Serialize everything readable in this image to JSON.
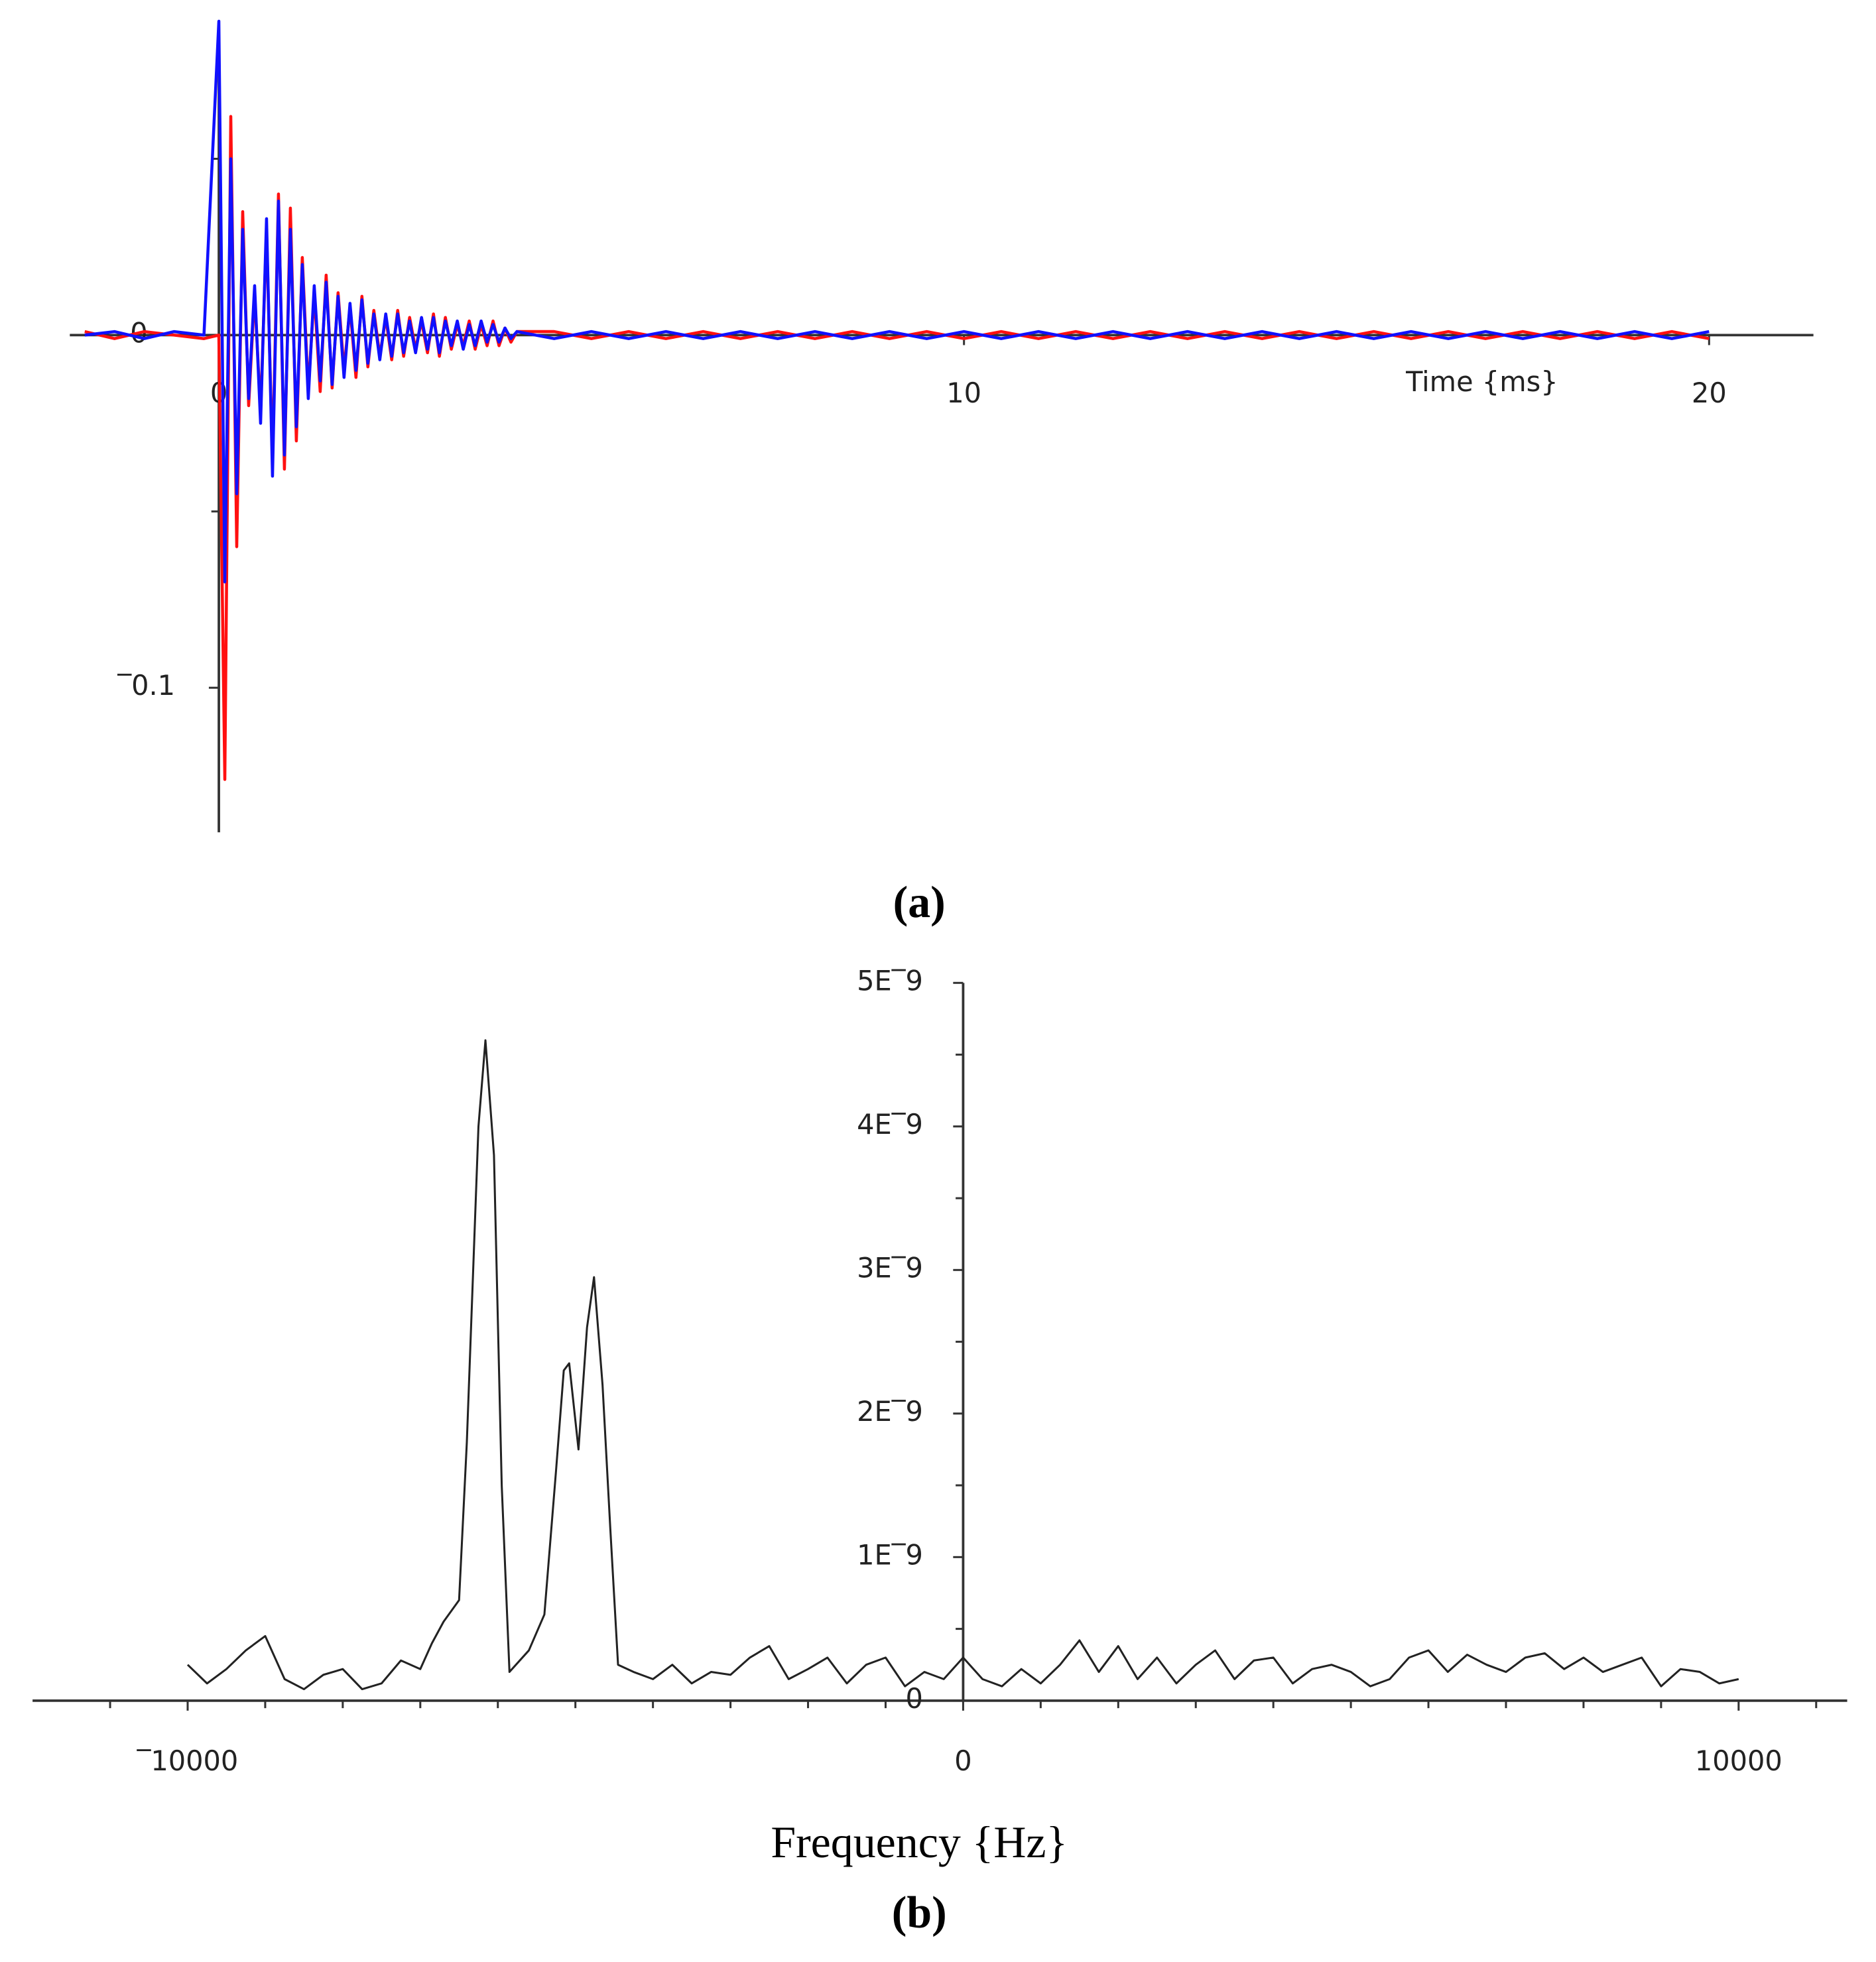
{
  "chart_data": [
    {
      "type": "line",
      "caption": "(a)",
      "x_label": "Time {ms}",
      "xlim": [
        -2,
        21.4
      ],
      "ylim": [
        -0.141,
        0.089
      ],
      "xticks": [
        0,
        10,
        20
      ],
      "yticks": [
        {
          "value": -0.1,
          "label": "‾0.1"
        },
        0
      ],
      "yminor_ticks": [
        0.05,
        -0.05
      ],
      "x": [
        -1.8,
        -1.4,
        -1.0,
        -0.6,
        -0.2,
        0,
        0.08,
        0.16,
        0.24,
        0.32,
        0.4,
        0.48,
        0.56,
        0.64,
        0.72,
        0.8,
        0.88,
        0.96,
        1.04,
        1.12,
        1.2,
        1.28,
        1.36,
        1.44,
        1.52,
        1.6,
        1.68,
        1.76,
        1.84,
        1.92,
        2.0,
        2.08,
        2.16,
        2.24,
        2.32,
        2.4,
        2.48,
        2.56,
        2.64,
        2.72,
        2.8,
        2.88,
        2.96,
        3.04,
        3.12,
        3.2,
        3.28,
        3.36,
        3.44,
        3.52,
        3.6,
        3.68,
        3.76,
        3.84,
        3.92,
        4.0,
        4.5,
        5,
        5.5,
        6,
        6.5,
        7,
        7.5,
        8,
        8.5,
        9,
        9.5,
        10,
        10.5,
        11,
        11.5,
        12,
        12.5,
        13,
        13.5,
        14,
        14.5,
        15,
        15.5,
        16,
        16.5,
        17,
        17.5,
        18,
        18.5,
        19,
        19.5,
        20
      ],
      "series": [
        {
          "color": "#ff1010",
          "values": [
            0.001,
            -0.001,
            0.001,
            0,
            -0.001,
            0.0,
            -0.126,
            0.062,
            -0.06,
            0.035,
            -0.02,
            0.012,
            -0.022,
            0.03,
            -0.036,
            0.04,
            -0.038,
            0.036,
            -0.03,
            0.022,
            -0.016,
            0.012,
            -0.016,
            0.017,
            -0.015,
            0.012,
            -0.01,
            0.008,
            -0.012,
            0.011,
            -0.009,
            0.007,
            -0.006,
            0.005,
            -0.007,
            0.007,
            -0.006,
            0.005,
            -0.004,
            0.004,
            -0.005,
            0.006,
            -0.006,
            0.005,
            -0.004,
            0.003,
            -0.003,
            0.004,
            -0.004,
            0.003,
            -0.003,
            0.004,
            -0.003,
            0.002,
            -0.002,
            0.001,
            0.001,
            -0.001,
            0.001,
            -0.001,
            0.001,
            -0.001,
            0.001,
            -0.001,
            0.001,
            -0.001,
            0.001,
            -0.001,
            0.001,
            -0.001,
            0.001,
            -0.001,
            0.001,
            -0.001,
            0.001,
            -0.001,
            0.001,
            -0.001,
            0.001,
            -0.001,
            0.001,
            -0.001,
            0.001,
            -0.001,
            0.001,
            -0.001,
            0.001,
            -0.001
          ]
        },
        {
          "color": "#1010ff",
          "values": [
            0,
            0.001,
            -0.001,
            0.001,
            0,
            0.089,
            -0.07,
            0.05,
            -0.045,
            0.03,
            -0.018,
            0.014,
            -0.025,
            0.033,
            -0.04,
            0.038,
            -0.034,
            0.03,
            -0.026,
            0.02,
            -0.018,
            0.014,
            -0.013,
            0.015,
            -0.014,
            0.011,
            -0.012,
            0.009,
            -0.01,
            0.01,
            -0.008,
            0.006,
            -0.007,
            0.006,
            -0.006,
            0.006,
            -0.005,
            0.004,
            -0.005,
            0.005,
            -0.004,
            0.005,
            -0.005,
            0.004,
            -0.003,
            0.004,
            -0.004,
            0.003,
            -0.003,
            0.004,
            -0.002,
            0.003,
            -0.002,
            0.002,
            -0.001,
            0.001,
            -0.001,
            0.001,
            -0.001,
            0.001,
            -0.001,
            0.001,
            -0.001,
            0.001,
            -0.001,
            0.001,
            -0.001,
            0.001,
            -0.001,
            0.001,
            -0.001,
            0.001,
            -0.001,
            0.001,
            -0.001,
            0.001,
            -0.001,
            0.001,
            -0.001,
            0.001,
            -0.001,
            0.001,
            -0.001,
            0.001,
            -0.001,
            0.001,
            -0.001,
            0.001
          ]
        }
      ]
    },
    {
      "type": "line",
      "caption": "(b)",
      "x_label": "Frequency {Hz}",
      "xlim": [
        -12000,
        11400
      ],
      "ylim": [
        0,
        5e-09
      ],
      "xticks": [
        {
          "value": -10000,
          "label": "‾10000"
        },
        0,
        10000
      ],
      "xminor_ticks": [
        -11000,
        -9000,
        -8000,
        -7000,
        -6000,
        -5000,
        -4000,
        -3000,
        -2000,
        -1000,
        1000,
        2000,
        3000,
        4000,
        5000,
        6000,
        7000,
        8000,
        9000,
        11000
      ],
      "yticks": [
        0,
        {
          "value": 1e-09,
          "label": "1E‾9"
        },
        {
          "value": 2e-09,
          "label": "2E‾9"
        },
        {
          "value": 3e-09,
          "label": "3E‾9"
        },
        {
          "value": 4e-09,
          "label": "4E‾9"
        },
        {
          "value": 5e-09,
          "label": "5E‾9"
        }
      ],
      "yminor_ticks": [
        5e-10,
        1.5e-09,
        2.5e-09,
        3.5e-09,
        4.5e-09
      ],
      "color": "#222222",
      "x": [
        -10000,
        -9750,
        -9500,
        -9250,
        -9000,
        -8750,
        -8500,
        -8250,
        -8000,
        -7750,
        -7500,
        -7250,
        -7000,
        -6850,
        -6700,
        -6500,
        -6400,
        -6250,
        -6160,
        -6050,
        -5950,
        -5850,
        -5600,
        -5400,
        -5250,
        -5150,
        -5080,
        -4960,
        -4850,
        -4760,
        -4650,
        -4550,
        -4450,
        -4250,
        -4000,
        -3750,
        -3500,
        -3250,
        -3000,
        -2750,
        -2500,
        -2250,
        -2000,
        -1750,
        -1500,
        -1250,
        -1000,
        -750,
        -500,
        -250,
        0,
        250,
        500,
        750,
        1000,
        1250,
        1500,
        1750,
        2000,
        2250,
        2500,
        2750,
        3000,
        3250,
        3500,
        3750,
        4000,
        4250,
        4500,
        4750,
        5000,
        5250,
        5500,
        5750,
        6000,
        6250,
        6500,
        6750,
        7000,
        7250,
        7500,
        7750,
        8000,
        8250,
        8500,
        8750,
        9000,
        9250,
        9500,
        9750,
        10000
      ],
      "values": [
        2.5e-10,
        1.2e-10,
        2.2e-10,
        3.5e-10,
        4.5e-10,
        1.5e-10,
        8e-11,
        1.8e-10,
        2.2e-10,
        8e-11,
        1.2e-10,
        2.8e-10,
        2.2e-10,
        4e-10,
        5.5e-10,
        7e-10,
        1.8e-09,
        4e-09,
        4.6e-09,
        3.8e-09,
        1.5e-09,
        2e-10,
        3.5e-10,
        6e-10,
        1.6e-09,
        2.3e-09,
        2.35e-09,
        1.75e-09,
        2.6e-09,
        2.95e-09,
        2.2e-09,
        1.2e-09,
        2.5e-10,
        2e-10,
        1.5e-10,
        2.5e-10,
        1.2e-10,
        2e-10,
        1.8e-10,
        3e-10,
        3.8e-10,
        1.5e-10,
        2.2e-10,
        3e-10,
        1.2e-10,
        2.5e-10,
        3e-10,
        1e-10,
        2e-10,
        1.5e-10,
        3e-10,
        1.5e-10,
        1e-10,
        2.2e-10,
        1.2e-10,
        2.5e-10,
        4.2e-10,
        2e-10,
        3.8e-10,
        1.5e-10,
        3e-10,
        1.2e-10,
        2.5e-10,
        3.5e-10,
        1.5e-10,
        2.8e-10,
        3e-10,
        1.2e-10,
        2.2e-10,
        2.5e-10,
        2e-10,
        1e-10,
        1.5e-10,
        3e-10,
        3.5e-10,
        2e-10,
        3.2e-10,
        2.5e-10,
        2e-10,
        3e-10,
        3.3e-10,
        2.2e-10,
        3e-10,
        2e-10,
        2.5e-10,
        3e-10,
        1e-10,
        2.2e-10,
        2e-10,
        1.2e-10,
        1.5e-10
      ]
    }
  ]
}
